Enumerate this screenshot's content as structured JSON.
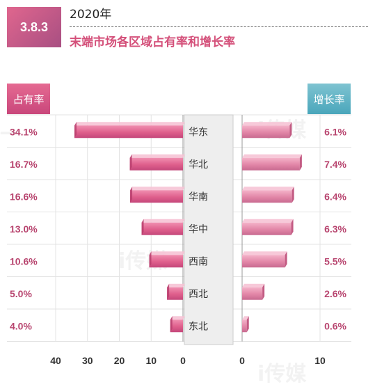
{
  "header": {
    "section": "3.8.3",
    "year": "2020年",
    "title": "末端市场各区域占有率和增长率"
  },
  "legend": {
    "left_tag": "占有率",
    "right_tag": "增长率"
  },
  "colors": {
    "share_bar": "#e0658f",
    "growth_bar": "#e086a6",
    "label_text": "#b8456f",
    "left_tag_bg": "#d9568a",
    "right_tag_bg": "#5fb2c6",
    "center_band": "#eeeeee"
  },
  "watermark": "i传媒",
  "chart_data": {
    "type": "bar",
    "categories": [
      "华东",
      "华北",
      "华南",
      "华中",
      "西南",
      "西北",
      "东北"
    ],
    "series": [
      {
        "name": "占有率",
        "values": [
          34.1,
          16.7,
          16.6,
          13.0,
          10.6,
          5.0,
          4.0
        ],
        "labels": [
          "34.1%",
          "16.7%",
          "16.6%",
          "13.0%",
          "10.6%",
          "5.0%",
          "4.0%"
        ]
      },
      {
        "name": "增长率",
        "values": [
          6.1,
          7.4,
          6.4,
          6.3,
          5.5,
          2.6,
          0.6
        ],
        "labels": [
          "6.1%",
          "7.4%",
          "6.4%",
          "6.3%",
          "5.5%",
          "2.6%",
          "0.6%"
        ]
      }
    ],
    "left_axis": {
      "ticks": [
        "40",
        "30",
        "20",
        "10",
        "0"
      ],
      "tick_values": [
        40,
        30,
        20,
        10,
        0
      ],
      "range": [
        0,
        40
      ]
    },
    "right_axis": {
      "ticks": [
        "0",
        "10"
      ],
      "tick_values": [
        0,
        10
      ],
      "range": [
        0,
        10
      ]
    },
    "grid": true
  }
}
